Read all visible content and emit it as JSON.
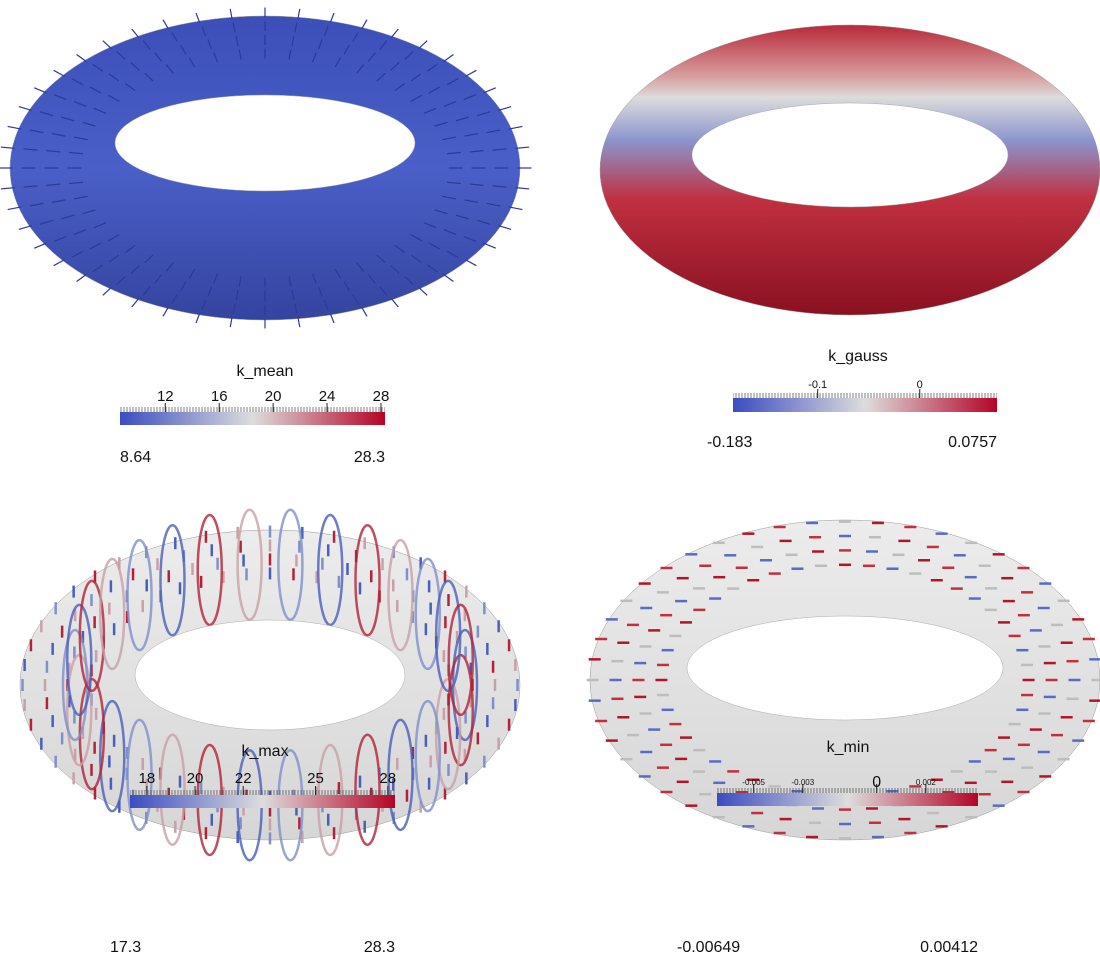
{
  "panels": [
    {
      "title": "k_mean",
      "ticks": [
        12,
        16,
        20,
        24,
        28
      ],
      "min": 8.64,
      "max": 28.3
    },
    {
      "title": "k_gauss",
      "ticks": [
        -0.1,
        0
      ],
      "min": -0.183,
      "max": 0.0757
    },
    {
      "title": "k_max",
      "ticks": [
        18,
        20,
        22,
        25,
        28
      ],
      "min": 17.3,
      "max": 28.3
    },
    {
      "title": "k_min",
      "ticks": [
        -0.005,
        -0.003,
        0,
        0.002
      ],
      "min": -0.00649,
      "max": 0.00412
    }
  ]
}
